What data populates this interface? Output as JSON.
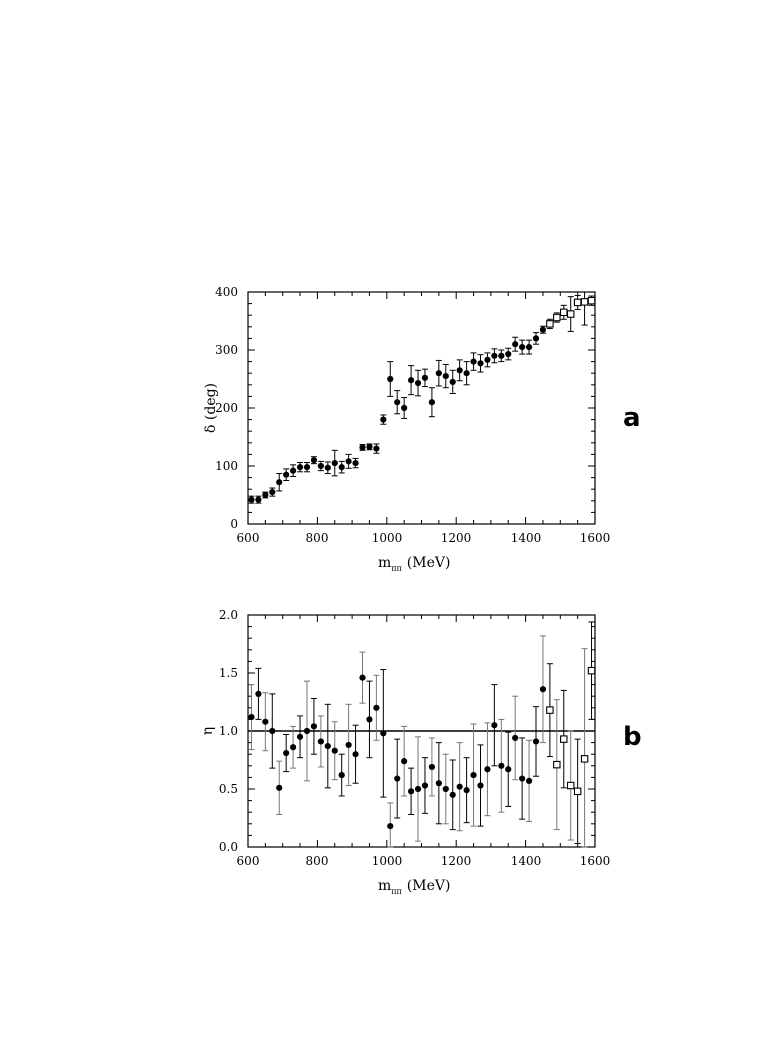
{
  "chart_data": [
    {
      "type": "scatter",
      "panel_label": "a",
      "xlabel_main": "m",
      "xlabel_sub": "ππ",
      "xlabel_unit": "(MeV)",
      "ylabel": "δ (deg)",
      "xlim": [
        600,
        1600
      ],
      "ylim": [
        0,
        400
      ],
      "xticks": [
        "600",
        "800",
        "1000",
        "1200",
        "1400",
        "1600"
      ],
      "yticks": [
        "0",
        "100",
        "200",
        "300",
        "400"
      ],
      "grid": false,
      "series": [
        {
          "marker": "filled-circle",
          "points": [
            {
              "x": 610,
              "y": 42,
              "err": 6
            },
            {
              "x": 630,
              "y": 42,
              "err": 6
            },
            {
              "x": 650,
              "y": 50,
              "err": 5
            },
            {
              "x": 670,
              "y": 55,
              "err": 7
            },
            {
              "x": 690,
              "y": 72,
              "err": 15
            },
            {
              "x": 710,
              "y": 85,
              "err": 10
            },
            {
              "x": 730,
              "y": 92,
              "err": 10
            },
            {
              "x": 750,
              "y": 98,
              "err": 8
            },
            {
              "x": 770,
              "y": 98,
              "err": 8
            },
            {
              "x": 790,
              "y": 110,
              "err": 6
            },
            {
              "x": 810,
              "y": 100,
              "err": 8
            },
            {
              "x": 830,
              "y": 97,
              "err": 10
            },
            {
              "x": 850,
              "y": 105,
              "err": 22
            },
            {
              "x": 870,
              "y": 98,
              "err": 10
            },
            {
              "x": 890,
              "y": 108,
              "err": 12
            },
            {
              "x": 910,
              "y": 105,
              "err": 8
            },
            {
              "x": 930,
              "y": 132,
              "err": 5
            },
            {
              "x": 950,
              "y": 133,
              "err": 5
            },
            {
              "x": 970,
              "y": 130,
              "err": 8
            },
            {
              "x": 990,
              "y": 180,
              "err": 8
            },
            {
              "x": 1010,
              "y": 250,
              "err": 30
            },
            {
              "x": 1030,
              "y": 210,
              "err": 20
            },
            {
              "x": 1050,
              "y": 200,
              "err": 18
            },
            {
              "x": 1070,
              "y": 248,
              "err": 25
            },
            {
              "x": 1090,
              "y": 243,
              "err": 22
            },
            {
              "x": 1110,
              "y": 252,
              "err": 15
            },
            {
              "x": 1130,
              "y": 210,
              "err": 25
            },
            {
              "x": 1150,
              "y": 260,
              "err": 22
            },
            {
              "x": 1170,
              "y": 255,
              "err": 20
            },
            {
              "x": 1190,
              "y": 245,
              "err": 20
            },
            {
              "x": 1210,
              "y": 265,
              "err": 18
            },
            {
              "x": 1230,
              "y": 260,
              "err": 20
            },
            {
              "x": 1250,
              "y": 280,
              "err": 15
            },
            {
              "x": 1270,
              "y": 277,
              "err": 15
            },
            {
              "x": 1290,
              "y": 283,
              "err": 12
            },
            {
              "x": 1310,
              "y": 290,
              "err": 12
            },
            {
              "x": 1330,
              "y": 290,
              "err": 10
            },
            {
              "x": 1350,
              "y": 293,
              "err": 10
            },
            {
              "x": 1370,
              "y": 310,
              "err": 12
            },
            {
              "x": 1390,
              "y": 305,
              "err": 12
            },
            {
              "x": 1410,
              "y": 305,
              "err": 12
            },
            {
              "x": 1430,
              "y": 320,
              "err": 10
            },
            {
              "x": 1450,
              "y": 335,
              "err": 6
            }
          ]
        },
        {
          "marker": "open-square",
          "points": [
            {
              "x": 1470,
              "y": 345,
              "err": 8
            },
            {
              "x": 1490,
              "y": 356,
              "err": 8
            },
            {
              "x": 1510,
              "y": 365,
              "err": 12
            },
            {
              "x": 1530,
              "y": 362,
              "err": 30
            },
            {
              "x": 1550,
              "y": 382,
              "err": 12
            },
            {
              "x": 1570,
              "y": 383,
              "err": 40
            },
            {
              "x": 1590,
              "y": 385,
              "err": 8
            }
          ]
        }
      ]
    },
    {
      "type": "scatter",
      "panel_label": "b",
      "xlabel_main": "m",
      "xlabel_sub": "ππ",
      "xlabel_unit": "(MeV)",
      "ylabel": "η",
      "xlim": [
        600,
        1600
      ],
      "ylim": [
        0,
        2
      ],
      "xticks": [
        "600",
        "800",
        "1000",
        "1200",
        "1400",
        "1600"
      ],
      "yticks": [
        "0.0",
        "0.5",
        "1.0",
        "1.5",
        "2.0"
      ],
      "reference_line": 1.0,
      "grid": false,
      "series": [
        {
          "marker": "filled-circle",
          "points": [
            {
              "x": 610,
              "y": 1.12,
              "err": 0.28
            },
            {
              "x": 630,
              "y": 1.32,
              "err": 0.22
            },
            {
              "x": 650,
              "y": 1.08,
              "err": 0.25
            },
            {
              "x": 670,
              "y": 1.0,
              "err": 0.32
            },
            {
              "x": 690,
              "y": 0.51,
              "err": 0.23
            },
            {
              "x": 710,
              "y": 0.81,
              "err": 0.16
            },
            {
              "x": 730,
              "y": 0.86,
              "err": 0.18
            },
            {
              "x": 750,
              "y": 0.95,
              "err": 0.18
            },
            {
              "x": 770,
              "y": 1.0,
              "err": 0.43
            },
            {
              "x": 790,
              "y": 1.04,
              "err": 0.24
            },
            {
              "x": 810,
              "y": 0.91,
              "err": 0.22
            },
            {
              "x": 830,
              "y": 0.87,
              "err": 0.36
            },
            {
              "x": 850,
              "y": 0.83,
              "err": 0.25
            },
            {
              "x": 870,
              "y": 0.62,
              "err": 0.18
            },
            {
              "x": 890,
              "y": 0.88,
              "err": 0.35
            },
            {
              "x": 910,
              "y": 0.8,
              "err": 0.25
            },
            {
              "x": 930,
              "y": 1.46,
              "err": 0.22
            },
            {
              "x": 950,
              "y": 1.1,
              "err": 0.33
            },
            {
              "x": 970,
              "y": 1.2,
              "err": 0.28
            },
            {
              "x": 990,
              "y": 0.98,
              "err": 0.55
            },
            {
              "x": 1010,
              "y": 0.18,
              "err": 0.2
            },
            {
              "x": 1030,
              "y": 0.59,
              "err": 0.34
            },
            {
              "x": 1050,
              "y": 0.74,
              "err": 0.3
            },
            {
              "x": 1070,
              "y": 0.48,
              "err": 0.2
            },
            {
              "x": 1090,
              "y": 0.5,
              "err": 0.45
            },
            {
              "x": 1110,
              "y": 0.53,
              "err": 0.24
            },
            {
              "x": 1130,
              "y": 0.69,
              "err": 0.25
            },
            {
              "x": 1150,
              "y": 0.55,
              "err": 0.35
            },
            {
              "x": 1170,
              "y": 0.5,
              "err": 0.3
            },
            {
              "x": 1190,
              "y": 0.45,
              "err": 0.3
            },
            {
              "x": 1210,
              "y": 0.52,
              "err": 0.38
            },
            {
              "x": 1230,
              "y": 0.49,
              "err": 0.28
            },
            {
              "x": 1250,
              "y": 0.62,
              "err": 0.44
            },
            {
              "x": 1270,
              "y": 0.53,
              "err": 0.35
            },
            {
              "x": 1290,
              "y": 0.67,
              "err": 0.4
            },
            {
              "x": 1310,
              "y": 1.05,
              "err": 0.35
            },
            {
              "x": 1330,
              "y": 0.7,
              "err": 0.4
            },
            {
              "x": 1350,
              "y": 0.67,
              "err": 0.32
            },
            {
              "x": 1370,
              "y": 0.94,
              "err": 0.36
            },
            {
              "x": 1390,
              "y": 0.59,
              "err": 0.35
            },
            {
              "x": 1410,
              "y": 0.57,
              "err": 0.35
            },
            {
              "x": 1430,
              "y": 0.91,
              "err": 0.3
            },
            {
              "x": 1450,
              "y": 1.36,
              "err": 0.46
            }
          ]
        },
        {
          "marker": "open-square",
          "points": [
            {
              "x": 1470,
              "y": 1.18,
              "err": 0.4
            },
            {
              "x": 1490,
              "y": 0.71,
              "err": 0.56
            },
            {
              "x": 1510,
              "y": 0.93,
              "err": 0.42
            },
            {
              "x": 1530,
              "y": 0.53,
              "err": 0.47
            },
            {
              "x": 1550,
              "y": 0.48,
              "err": 0.45
            },
            {
              "x": 1570,
              "y": 0.76,
              "err": 0.95
            },
            {
              "x": 1590,
              "y": 1.52,
              "err": 0.42
            }
          ]
        }
      ]
    }
  ]
}
